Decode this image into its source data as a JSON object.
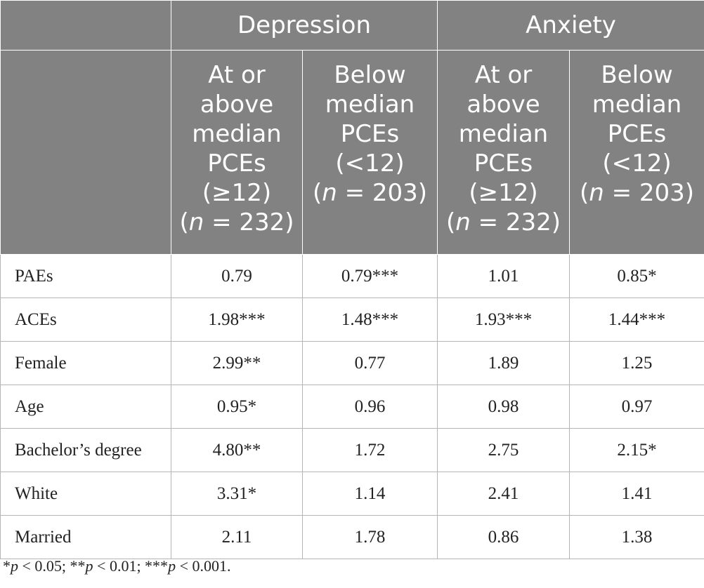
{
  "header": {
    "groups": [
      "Depression",
      "Anxiety"
    ],
    "columns": [
      {
        "line1": "At or",
        "line2": "above",
        "line3": "median",
        "line4": "PCEs",
        "line5": "(≥12)",
        "n_label": "n",
        "n_rest": " = 232)"
      },
      {
        "line1": "Below",
        "line2": "median",
        "line3": "PCEs",
        "line4": "(<12)",
        "n_label": "n",
        "n_rest": " = 203)"
      },
      {
        "line1": "At or",
        "line2": "above",
        "line3": "median",
        "line4": "PCEs",
        "line5": "(≥12)",
        "n_label": "n",
        "n_rest": " = 232)"
      },
      {
        "line1": "Below",
        "line2": "median",
        "line3": "PCEs",
        "line4": "(<12)",
        "n_label": "n",
        "n_rest": " = 203)"
      }
    ]
  },
  "rows": [
    {
      "label": "PAEs",
      "values": [
        "0.79",
        "0.79***",
        "1.01",
        "0.85*"
      ]
    },
    {
      "label": "ACEs",
      "values": [
        "1.98***",
        "1.48***",
        "1.93***",
        "1.44***"
      ]
    },
    {
      "label": "Female",
      "values": [
        "2.99**",
        "0.77",
        "1.89",
        "1.25"
      ]
    },
    {
      "label": "Age",
      "values": [
        "0.95*",
        "0.96",
        "0.98",
        "0.97"
      ]
    },
    {
      "label": "Bachelor’s degree",
      "values": [
        "4.80**",
        "1.72",
        "2.75",
        "2.15*"
      ]
    },
    {
      "label": "White",
      "values": [
        "3.31*",
        "1.14",
        "2.41",
        "1.41"
      ]
    },
    {
      "label": "Married",
      "values": [
        "2.11",
        "1.78",
        "0.86",
        "1.38"
      ]
    }
  ],
  "footnote": {
    "p1": "p",
    "t1": " < 0.05; **",
    "p2": "p",
    "t2": " < 0.01; ***",
    "p3": "p",
    "t3": " < 0.001."
  }
}
